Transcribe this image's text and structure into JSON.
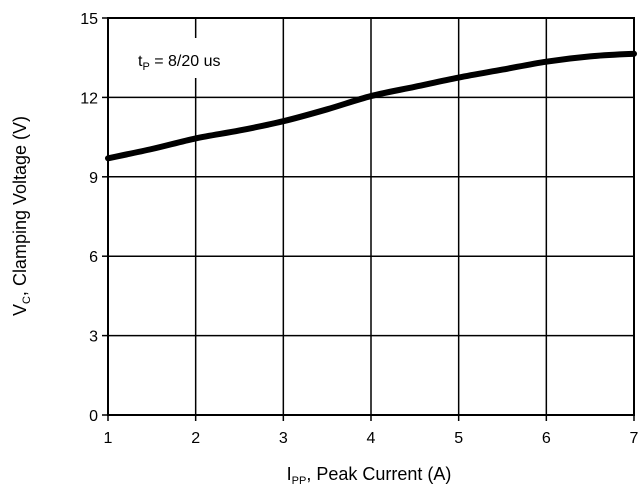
{
  "chart_data": {
    "type": "line",
    "title": "",
    "xlabel": {
      "main": "I",
      "sub": "PP",
      "rest": ", Peak Current (A)"
    },
    "ylabel": {
      "main": "V",
      "sub": "C",
      "rest": ", Clamping Voltage (V)"
    },
    "xlim": [
      1,
      7
    ],
    "ylim": [
      0,
      15
    ],
    "x_ticks": [
      1,
      2,
      3,
      4,
      5,
      6,
      7
    ],
    "y_ticks": [
      0,
      3,
      6,
      9,
      12,
      15
    ],
    "grid": true,
    "annotation": {
      "main": "t",
      "sub": "P",
      "rest": " = 8/20 us"
    },
    "series": [
      {
        "x": [
          1,
          1.5,
          2,
          2.5,
          3,
          3.5,
          4,
          4.5,
          5,
          5.5,
          6,
          6.5,
          7
        ],
        "y": [
          9.7,
          10.05,
          10.45,
          10.75,
          11.1,
          11.55,
          12.05,
          12.4,
          12.75,
          13.05,
          13.35,
          13.55,
          13.65
        ]
      }
    ]
  }
}
